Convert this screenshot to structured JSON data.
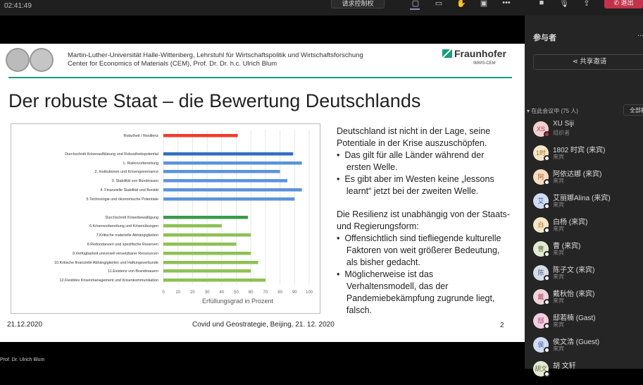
{
  "topbar": {
    "timer": "02:41:49",
    "request_control": "请求控制权",
    "exit": "退出"
  },
  "slide": {
    "header_line1": "Martin-Luther-Universität Halle-Wittenberg, Lehrstuhl für Wirtschaftspolitik und Wirtschaftsforschung",
    "header_line2": "Center for Economics of Materials (CEM), Prof. Dr. Dr. h.c. Ulrich Blum",
    "logo_name": "Fraunhofer",
    "logo_sub": "IMWS-CEM",
    "title": "Der robuste Staat – die Bewertung Deutschlands",
    "text": [
      "Deutschland ist nicht in der Lage, seine",
      "Potentiale in der Krise auszuschöpfen.",
      "•  Das gilt für alle Länder während der",
      "    ersten Welle.",
      "•  Es gibt aber im Westen keine „lessons",
      "    learnt“ jetzt bei der zweiten Welle.",
      "Die Resilienz ist unabhängig von der Staats-",
      "und Regierungsform:",
      "•  Offensichtlich sind tiefliegende kulturelle",
      "    Faktoren von weit größerer Bedeutung,",
      "    als bisher gedacht.",
      "•  Möglicherweise ist das",
      "    Verhaltensmodell, das der",
      "    Pandemiebekämpfung zugrunde liegt,",
      "    falsch."
    ],
    "footer_date": "21.12.2020",
    "footer_center": "Covid und Geostrategie, Beijing, 21. 12. 2020",
    "page": "2"
  },
  "presenter": "Prof. Dr. Ulrich Blum",
  "chart_data": {
    "type": "bar",
    "orientation": "horizontal",
    "xlabel": "Erfüllungsgrad in Prozent",
    "xlim": [
      0,
      100
    ],
    "xticks": [
      "0",
      "10",
      "20",
      "30",
      "40",
      "50",
      "60",
      "70",
      "80",
      "90",
      "100"
    ],
    "grid": true,
    "categories": [
      "Robutheit / Resilienz",
      "Durchschnitt Krisenaufklärung und Robustheitspotential",
      "1. Risikovorbereitung",
      "2. Institutionen und Krisengovernance",
      "3. Stabilität von Bündnissen",
      "4. Finanzielle Stabilität und Bonität",
      "5.Technologie und ökonomische Potentiale",
      "Durchschnitt Krisenbewältigung",
      "6.Krisenvorbereitung und Krisenübungen",
      "7.Kritische materielle Abhängigkeiten",
      "8.Redundanzen und spezifische Reserven",
      "9.Verfügbarkeit universell einsetzbarer Ressourcen",
      "10.Kritische finanzielle Abhängigkeiten und Haftungsverbunde",
      "11.Existenz von Brandmauern",
      "12.Flexibles Krisenmanagement und Krisenkommunikation"
    ],
    "values": [
      51,
      89,
      95,
      80,
      85,
      95,
      90,
      58,
      40,
      60,
      50,
      60,
      65,
      60,
      70
    ],
    "colors": [
      "#f03c2e",
      "#2f6fc0",
      "#5b93dc",
      "#5b93dc",
      "#5b93dc",
      "#5b93dc",
      "#5b93dc",
      "#3a9a4a",
      "#8cc152",
      "#8cc152",
      "#8cc152",
      "#8cc152",
      "#8cc152",
      "#8cc152",
      "#8cc152"
    ]
  },
  "panel": {
    "title": "参与者",
    "more": "...",
    "share_invite": "共享邀请",
    "in_meeting": "在此会议中 (75 人)",
    "mute_all": "全部静音",
    "participants": [
      {
        "initials": "XS",
        "name": "XU Siji",
        "role": "组织者",
        "color": "#f3d0d0",
        "fg": "#b04040",
        "dot": "#c4314b"
      },
      {
        "initials": "1时",
        "name": "1802 时宾 (来宾)",
        "role": "来宾",
        "color": "#f5e6c8",
        "fg": "#a07030",
        "dot": "#fff"
      },
      {
        "initials": "阿",
        "name": "阿依达娜 (来宾)",
        "role": "来宾",
        "color": "#f8dcc0",
        "fg": "#a06030",
        "dot": "#fff"
      },
      {
        "initials": "艾",
        "name": "艾丽娜Alina (来宾)",
        "role": "来宾",
        "color": "#cfdcf2",
        "fg": "#4060a0",
        "dot": "#fff"
      },
      {
        "initials": "白",
        "name": "白杨 (来宾)",
        "role": "来宾",
        "color": "#f5e6c8",
        "fg": "#a07030",
        "dot": "#fff"
      },
      {
        "initials": "曹",
        "name": "曹 (来宾)",
        "role": "来宾",
        "color": "#e3ead3",
        "fg": "#607040",
        "dot": "#fff"
      },
      {
        "initials": "陈",
        "name": "陈子文 (来宾)",
        "role": "来宾",
        "color": "#d5dde8",
        "fg": "#506080",
        "dot": "#fff"
      },
      {
        "initials": "戴",
        "name": "戴秋怡 (来宾)",
        "role": "来宾",
        "color": "#f0d3da",
        "fg": "#a04060",
        "dot": "#fff"
      },
      {
        "initials": "邸",
        "name": "邸若楠 (Gast)",
        "role": "来宾",
        "color": "#f2cfe0",
        "fg": "#a04070",
        "dot": "#fff"
      },
      {
        "initials": "侯",
        "name": "侯文浩 (Guest)",
        "role": "来宾",
        "color": "#cfdcf2",
        "fg": "#4060a0",
        "dot": "#fff"
      },
      {
        "initials": "胡文",
        "name": "胡 文轩",
        "role": "",
        "color": "#e3ead3",
        "fg": "#607040",
        "dot": "#fff"
      }
    ]
  }
}
